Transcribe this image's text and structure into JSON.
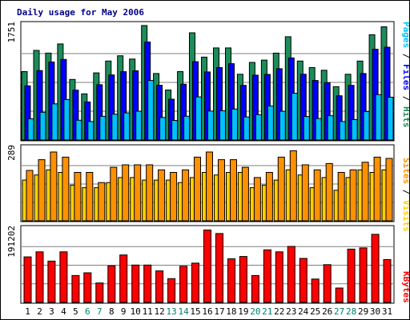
{
  "chart_data": {
    "type": "bar",
    "title": "Daily usage for May 2006",
    "categories": [
      "1",
      "2",
      "3",
      "4",
      "5",
      "6",
      "7",
      "8",
      "9",
      "10",
      "11",
      "12",
      "13",
      "14",
      "15",
      "16",
      "17",
      "18",
      "19",
      "20",
      "21",
      "22",
      "23",
      "24",
      "25",
      "26",
      "27",
      "28",
      "29",
      "30",
      "31"
    ],
    "weekend_days": [
      "6",
      "7",
      "13",
      "14",
      "20",
      "21",
      "27",
      "28"
    ],
    "colors": {
      "hits": "#1c8c5a",
      "files": "#0000ff",
      "pages": "#00c0ff",
      "visits": "#ffd000",
      "sites": "#ff9000",
      "kbytes": "#ff0000",
      "weekday_label": "#000000",
      "weekend_label": "#00806a"
    },
    "panels": [
      {
        "id": "hits",
        "max_label": "1751",
        "ylim": [
          0,
          1751
        ],
        "legend": [
          "Pages",
          "Files",
          "Hits"
        ],
        "series": [
          {
            "name": "Hits",
            "values": [
              1040,
              1362,
              1320,
              1460,
              920,
              702,
              1020,
              1200,
              1280,
              1230,
              1740,
              1010,
              760,
              1040,
              1630,
              1260,
              1400,
              1400,
              1000,
              1180,
              1215,
              1320,
              1570,
              1200,
              1100,
              1060,
              811,
              1000,
              1200,
              1600,
              1720
            ]
          },
          {
            "name": "Files",
            "values": [
              823,
              1055,
              1185,
              1224,
              758,
              579,
              840,
              989,
              1038,
              1052,
              1490,
              832,
              620,
              847,
              1190,
              1035,
              1100,
              1160,
              830,
              985,
              997,
              1083,
              1247,
              1000,
              905,
              872,
              673,
              830,
              1010,
              1380,
              1410
            ]
          },
          {
            "name": "Pages",
            "values": [
              322,
              422,
              550,
              614,
              300,
              281,
              360,
              393,
              412,
              438,
              905,
              343,
              298,
              361,
              655,
              440,
              445,
              471,
              350,
              385,
              517,
              437,
              710,
              358,
              327,
              370,
              281,
              310,
              433,
              690,
              651
            ]
          }
        ]
      },
      {
        "id": "visits",
        "max_label": "289",
        "ylim": [
          0,
          289
        ],
        "legend": [
          "Sites",
          "Visits"
        ],
        "series": [
          {
            "name": "Visits",
            "values": [
              160,
              180,
              200,
              190,
              140,
              130,
              130,
              150,
              170,
              170,
              160,
              160,
              160,
              150,
              170,
              190,
              180,
              190,
              190,
              130,
              140,
              160,
              200,
              180,
              130,
              170,
              120,
              170,
              200,
              190,
              200
            ]
          },
          {
            "name": "Sites",
            "values": [
              198,
              240,
              270,
              250,
              190,
              190,
              150,
              210,
              220,
              220,
              220,
              200,
              190,
              200,
              250,
              270,
              240,
              240,
              210,
              170,
              190,
              250,
              275,
              220,
              200,
              225,
              190,
              200,
              230,
              250,
              245
            ]
          }
        ]
      },
      {
        "id": "kbytes",
        "max_label": "191202",
        "ylim": [
          0,
          191202
        ],
        "legend": [
          "KBytes"
        ],
        "series": [
          {
            "name": "KBytes",
            "values": [
              117000,
              130000,
              106000,
              130000,
              69000,
              76000,
              50000,
              94000,
              122000,
              96000,
              96000,
              81000,
              61000,
              93000,
              101000,
              186000,
              177000,
              112000,
              118000,
              69000,
              135000,
              130000,
              144000,
              113000,
              60000,
              97000,
              37000,
              137000,
              140000,
              175000,
              110000
            ]
          }
        ]
      }
    ]
  }
}
